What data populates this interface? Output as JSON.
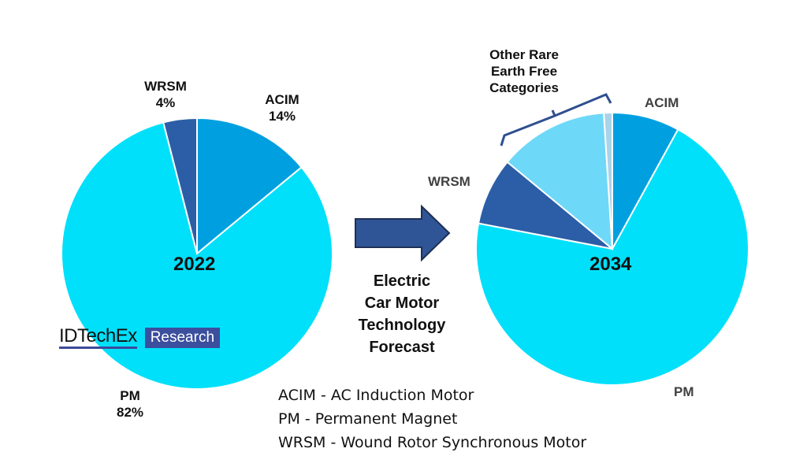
{
  "chart_data": [
    {
      "type": "pie",
      "title": "2022",
      "slices": [
        {
          "label": "ACIM",
          "value": 14,
          "value_label": "14%",
          "color": "#00a0e0"
        },
        {
          "label": "PM",
          "value": 82,
          "value_label": "82%",
          "color": "#00e0fa"
        },
        {
          "label": "WRSM",
          "value": 4,
          "value_label": "4%",
          "color": "#2b5ea6"
        }
      ]
    },
    {
      "type": "pie",
      "title": "2034",
      "slices": [
        {
          "label": "ACIM",
          "value": 8,
          "color": "#00a0e0"
        },
        {
          "label": "PM",
          "value": 70,
          "color": "#00e0fa"
        },
        {
          "label": "WRSM",
          "value": 8,
          "color": "#2b5ea6"
        },
        {
          "label": "Other Rare Earth Free Categories",
          "value": 13,
          "color": "#6ed8f8"
        },
        {
          "label": "Other Rare Earth Free Categories (minor)",
          "value": 1,
          "color": "#a9d3ea"
        }
      ],
      "annotation": "Other Rare Earth Free Categories"
    }
  ],
  "arrow_text": [
    "Electric",
    "Car Motor",
    "Technology",
    "Forecast"
  ],
  "legend": [
    "ACIM - AC Induction Motor",
    "PM - Permanent Magnet",
    "WRSM - Wound Rotor Synchronous Motor"
  ],
  "logo": {
    "name": "IDTechEx",
    "tag": "Research"
  },
  "colors": {
    "arrow": "#2f5597"
  }
}
